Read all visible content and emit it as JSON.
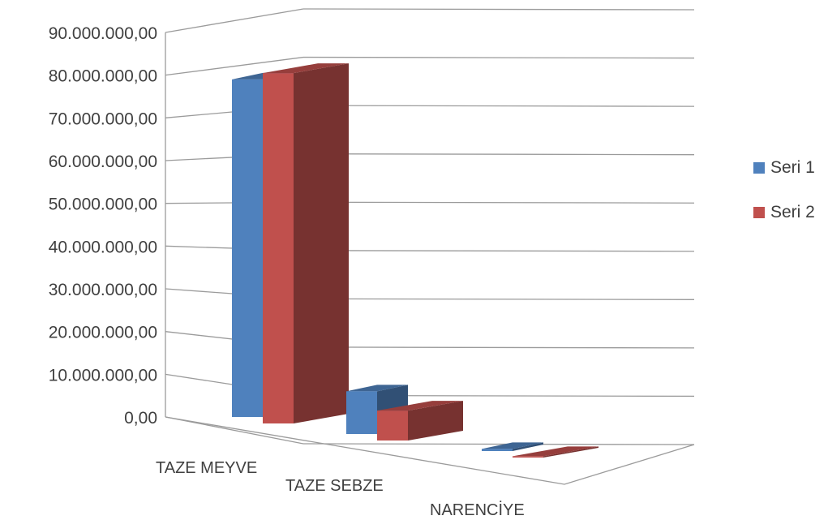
{
  "chart_data": {
    "type": "bar",
    "categories": [
      "TAZE MEYVE",
      "TAZE SEBZE",
      "NARENCİYE"
    ],
    "series": [
      {
        "name": "Seri 1",
        "values": [
          79000000,
          10000000,
          500000
        ],
        "color": "#4F81BD"
      },
      {
        "name": "Seri 2",
        "values": [
          82000000,
          7000000,
          300000
        ],
        "color": "#C0504D"
      }
    ],
    "y_ticks": [
      "0,00",
      "10.000.000,00",
      "20.000.000,00",
      "30.000.000,00",
      "40.000.000,00",
      "50.000.000,00",
      "60.000.000,00",
      "70.000.000,00",
      "80.000.000,00",
      "90.000.000,00"
    ],
    "ylim": [
      0,
      90000000
    ],
    "grid": true,
    "legend_position": "right",
    "title": "",
    "xlabel": "",
    "ylabel": ""
  }
}
